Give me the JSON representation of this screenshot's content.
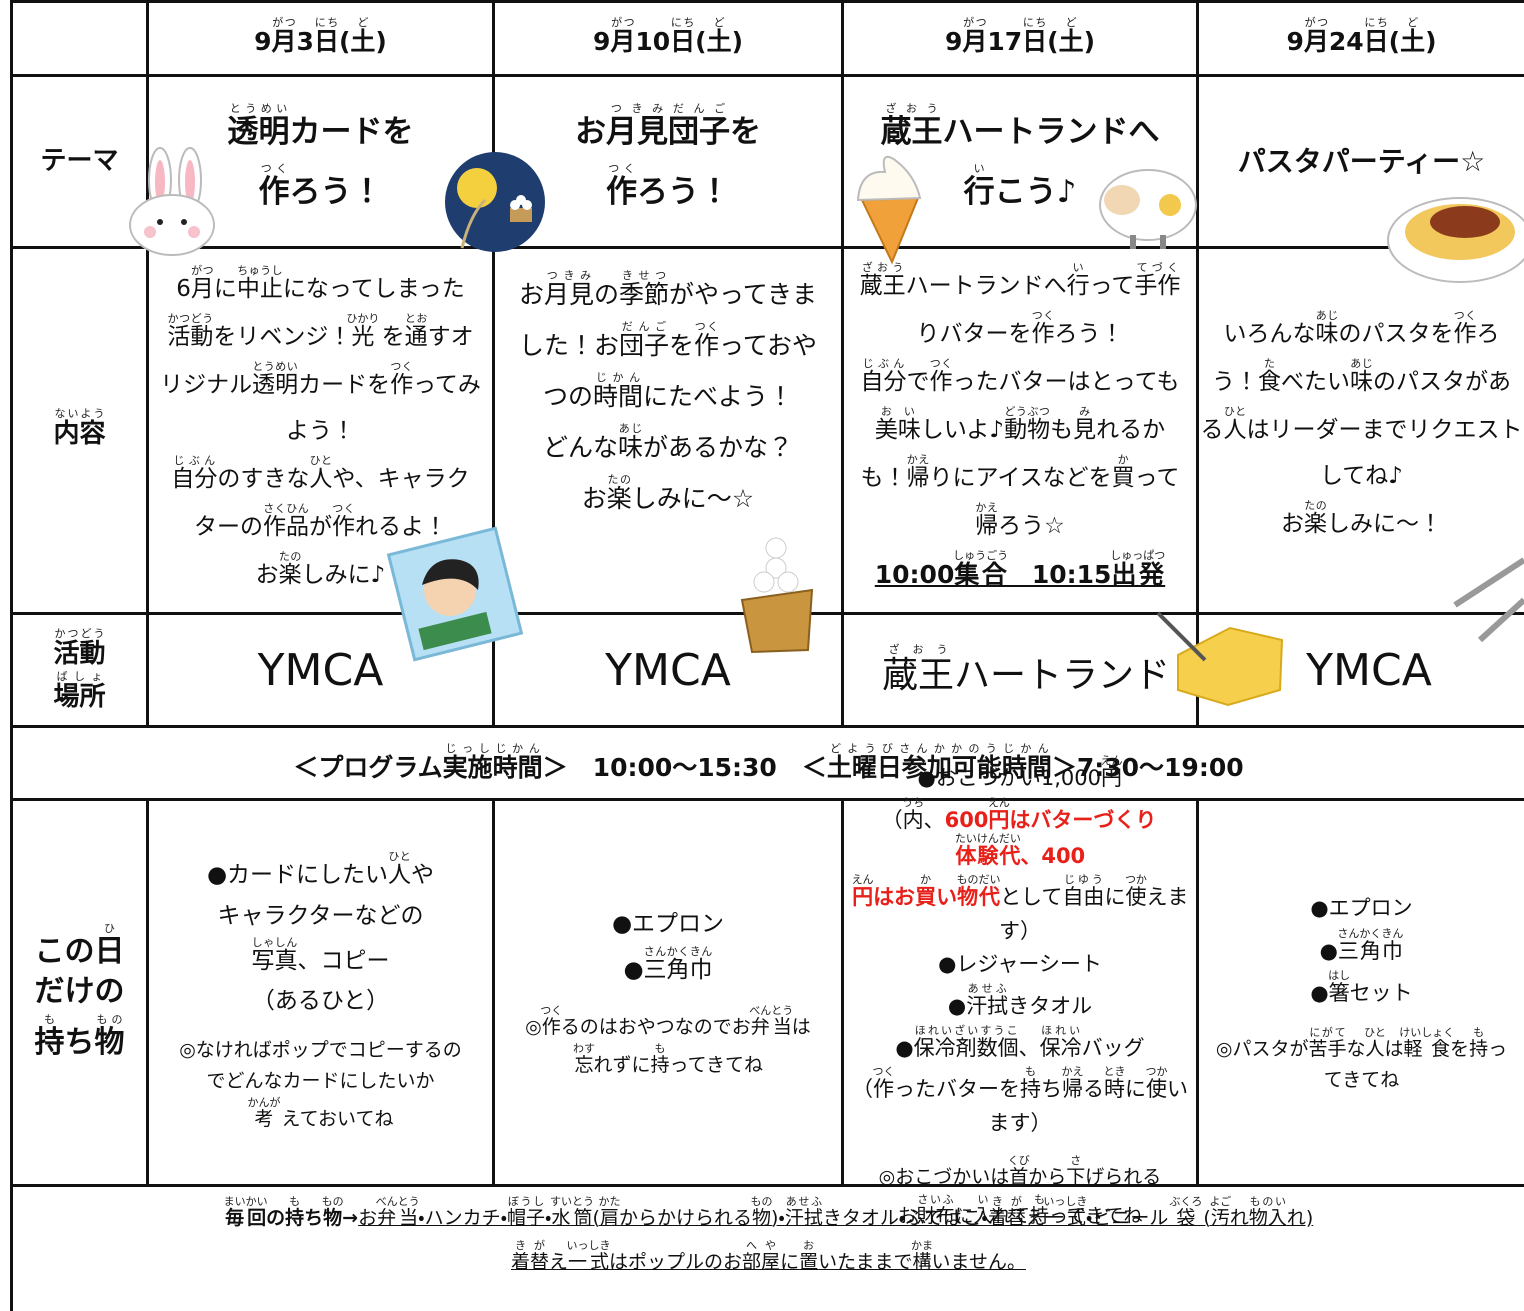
{
  "columns": [
    {
      "date": [
        [
          "9",
          {
            "t": "月",
            "r": "がつ"
          },
          "3",
          {
            "t": "日",
            "r": "にち"
          },
          "(",
          {
            "t": "土",
            "r": "ど"
          },
          ")"
        ]
      ],
      "theme": [
        [
          {
            "t": "透明",
            "r": "とうめい"
          },
          "カードを"
        ],
        [
          {
            "t": "作",
            "r": "つく"
          },
          "ろう！"
        ]
      ],
      "content": [
        [
          "6",
          {
            "t": "月",
            "r": "がつ"
          },
          "に",
          {
            "t": "中止",
            "r": "ちゅうし"
          },
          "になってしまった"
        ],
        [
          {
            "t": "活動",
            "r": "かつどう"
          },
          "をリベンジ！",
          {
            "t": "光",
            "r": "ひかり"
          },
          " を",
          {
            "t": "通",
            "r": "とお"
          },
          "すオ"
        ],
        [
          "リジナル",
          {
            "t": "透明",
            "r": "とうめい"
          },
          "カードを",
          {
            "t": "作",
            "r": "つく"
          },
          "ってみ"
        ],
        [
          "よう！"
        ],
        [
          {
            "t": "自分",
            "r": "じぶん"
          },
          "のすきな",
          {
            "t": "人",
            "r": "ひと"
          },
          "や、キャラク"
        ],
        [
          "ターの",
          {
            "t": "作品",
            "r": "さくひん"
          },
          "が",
          {
            "t": "作",
            "r": "つく"
          },
          "れるよ！"
        ],
        [
          "お",
          {
            "t": "楽",
            "r": "たの"
          },
          "しみに♪"
        ]
      ],
      "place": [
        [
          "YMCA"
        ]
      ],
      "items": [
        [
          "●カードにしたい",
          {
            "t": "人",
            "r": "ひと"
          },
          "や"
        ],
        [
          "キャラクターなどの"
        ],
        [
          {
            "t": "写真",
            "r": "しゃしん"
          },
          "、コピー"
        ],
        [
          "（あるひと）"
        ]
      ],
      "note": [
        [
          "◎なければポップでコピーするの"
        ],
        [
          "でどんなカードにしたいか"
        ],
        [
          {
            "t": "考",
            "r": "かんが"
          },
          " えておいてね"
        ]
      ]
    },
    {
      "date": [
        [
          "9",
          {
            "t": "月",
            "r": "がつ"
          },
          "10",
          {
            "t": "日",
            "r": "にち"
          },
          "(",
          {
            "t": "土",
            "r": "ど"
          },
          ")"
        ]
      ],
      "theme": [
        [
          "お",
          {
            "t": "月見団子",
            "r": "つきみだんご"
          },
          "を"
        ],
        [
          {
            "t": "作",
            "r": "つく"
          },
          "ろう！"
        ]
      ],
      "content": [
        [
          "お",
          {
            "t": "月見",
            "r": "つきみ"
          },
          "の",
          {
            "t": "季節",
            "r": "きせつ"
          },
          "がやってきま"
        ],
        [
          "した！お",
          {
            "t": "団子",
            "r": "だんご"
          },
          "を",
          {
            "t": "作",
            "r": "つく"
          },
          "っておや"
        ],
        [
          "つの",
          {
            "t": "時間",
            "r": "じかん"
          },
          "にたべよう！"
        ],
        [
          "どんな",
          {
            "t": "味",
            "r": "あじ"
          },
          "があるかな？"
        ],
        [
          "お",
          {
            "t": "楽",
            "r": "たの"
          },
          "しみに～☆"
        ]
      ],
      "place": [
        [
          "YMCA"
        ]
      ],
      "items": [
        [
          "●エプロン"
        ],
        [
          "●",
          {
            "t": "三角巾",
            "r": "さんかくきん"
          }
        ]
      ],
      "note": [
        [
          "◎",
          {
            "t": "作",
            "r": "つく"
          },
          "るのはおやつなのでお",
          {
            "t": "弁当",
            "r": "べんとう"
          },
          "は"
        ],
        [
          {
            "t": "忘",
            "r": "わす"
          },
          "れずに",
          {
            "t": "持",
            "r": "も"
          },
          "ってきてね"
        ]
      ]
    },
    {
      "date": [
        [
          "9",
          {
            "t": "月",
            "r": "がつ"
          },
          "17",
          {
            "t": "日",
            "r": "にち"
          },
          "(",
          {
            "t": "土",
            "r": "ど"
          },
          ")"
        ]
      ],
      "theme": [
        [
          {
            "t": "蔵王",
            "r": "ざおう"
          },
          "ハートランドへ"
        ],
        [
          {
            "t": "行",
            "r": "い"
          },
          "こう♪"
        ]
      ],
      "content": [
        [
          {
            "t": "蔵王",
            "r": "ざおう"
          },
          "ハートランドへ",
          {
            "t": "行",
            "r": "い"
          },
          "って",
          {
            "t": "手作",
            "r": "てづく"
          }
        ],
        [
          "りバターを",
          {
            "t": "作",
            "r": "つく"
          },
          "ろう！"
        ],
        [
          {
            "t": "自分",
            "r": "じぶん"
          },
          "で",
          {
            "t": "作",
            "r": "つく"
          },
          "ったバターはとっても"
        ],
        [
          {
            "t": "美味",
            "r": "おい"
          },
          "しいよ♪",
          {
            "t": "動物",
            "r": "どうぶつ"
          },
          "も",
          {
            "t": "見",
            "r": "み"
          },
          "れるか"
        ],
        [
          "も！",
          {
            "t": "帰",
            "r": "かえ"
          },
          "りにアイスなどを",
          {
            "t": "買",
            "r": "か"
          },
          "って"
        ],
        [
          {
            "t": "帰",
            "r": "かえ"
          },
          "ろう☆"
        ]
      ],
      "content_emphasis": [
        [
          "10:00",
          {
            "t": "集合",
            "r": "しゅうごう"
          },
          "　10:15",
          {
            "t": "出発",
            "r": "しゅっぱつ"
          }
        ]
      ],
      "place": [
        [
          {
            "t": "蔵王",
            "r": "ざおう"
          },
          "ハートランド"
        ]
      ],
      "items": [
        [
          "●おこづかい1,000",
          {
            "t": "円",
            "r": "えん"
          }
        ],
        [
          "（",
          {
            "t": "内",
            "r": "うち"
          },
          "、",
          {
            "t": "600",
            "red": true
          },
          {
            "t": "円",
            "r": "えん",
            "red": true
          },
          {
            "t": "はバターづくり",
            "red": true
          },
          {
            "t": "体験代",
            "r": "たいけんだい",
            "red": true
          },
          {
            "t": "、400",
            "red": true
          }
        ],
        [
          {
            "t": "円",
            "r": "えん",
            "red": true
          },
          {
            "t": "はお",
            "red": true
          },
          {
            "t": "買",
            "r": "か",
            "red": true
          },
          {
            "t": "い",
            "red": true
          },
          {
            "t": "物代",
            "r": "ものだい",
            "red": true
          },
          "として",
          {
            "t": "自由",
            "r": "じゆう"
          },
          "に",
          {
            "t": "使",
            "r": "つか"
          },
          "えます）"
        ],
        [
          "●レジャーシート"
        ],
        [
          "●",
          {
            "t": "汗拭",
            "r": "あせふ"
          },
          "きタオル"
        ],
        [
          "●",
          {
            "t": "保冷剤数個",
            "r": "ほれいざいすうこ"
          },
          "、",
          {
            "t": "保冷",
            "r": "ほれい"
          },
          "バッグ"
        ],
        [
          "（",
          {
            "t": "作",
            "r": "つく"
          },
          "ったバターを",
          {
            "t": "持",
            "r": "も"
          },
          "ち",
          {
            "t": "帰",
            "r": "かえ"
          },
          "る",
          {
            "t": "時",
            "r": "とき"
          },
          "に",
          {
            "t": "使",
            "r": "つか"
          },
          "います）"
        ]
      ],
      "note": [
        [
          "◎おこづかいは",
          {
            "t": "首",
            "r": "くび"
          },
          "から",
          {
            "t": "下",
            "r": "さ"
          },
          "げられる"
        ],
        [
          "お",
          {
            "t": "財布",
            "r": "さいふ"
          },
          "に",
          {
            "t": "入",
            "r": "い"
          },
          "れて",
          {
            "t": "持",
            "r": "も"
          },
          "ってきてね"
        ]
      ]
    },
    {
      "date": [
        [
          "9",
          {
            "t": "月",
            "r": "がつ"
          },
          "24",
          {
            "t": "日",
            "r": "にち"
          },
          "(",
          {
            "t": "土",
            "r": "ど"
          },
          ")"
        ]
      ],
      "theme": [
        [
          "パスタパーティー☆"
        ]
      ],
      "content": [
        [
          "いろんな",
          {
            "t": "味",
            "r": "あじ"
          },
          "のパスタを",
          {
            "t": "作",
            "r": "つく"
          },
          "ろ"
        ],
        [
          "う！",
          {
            "t": "食",
            "r": "た"
          },
          "べたい",
          {
            "t": "味",
            "r": "あじ"
          },
          "のパスタがあ"
        ],
        [
          "る",
          {
            "t": "人",
            "r": "ひと"
          },
          "はリーダーまでリクエスト"
        ],
        [
          "してね♪"
        ],
        [
          "お",
          {
            "t": "楽",
            "r": "たの"
          },
          "しみに～！"
        ]
      ],
      "place": [
        [
          "YMCA"
        ]
      ],
      "items": [
        [
          "●エプロン"
        ],
        [
          "●",
          {
            "t": "三角巾",
            "r": "さんかくきん"
          }
        ],
        [
          "●",
          {
            "t": "箸",
            "r": "はし"
          },
          "セット"
        ]
      ],
      "note": [
        [
          "◎パスタが",
          {
            "t": "苦手",
            "r": "にがて"
          },
          "な",
          {
            "t": "人",
            "r": "ひと"
          },
          "は",
          {
            "t": "軽食",
            "r": "けいしょく"
          },
          "を",
          {
            "t": "持",
            "r": "も"
          },
          "っ"
        ],
        [
          "てきてね"
        ]
      ]
    }
  ],
  "row_labels": {
    "theme": [
      [
        "テーマ"
      ]
    ],
    "content": [
      [
        {
          "t": "内容",
          "r": "ないよう"
        }
      ]
    ],
    "place": [
      [
        {
          "t": "活動",
          "r": "かつどう"
        }
      ],
      [
        {
          "t": "場所",
          "r": "ばしょ"
        }
      ]
    ],
    "items": [
      [
        "この",
        {
          "t": "日",
          "r": "ひ"
        }
      ],
      [
        "だけの"
      ],
      [
        {
          "t": "持",
          "r": "も"
        },
        "ち",
        {
          "t": "物",
          "r": "もの"
        }
      ]
    ]
  },
  "program": [
    [
      "＜プログラム",
      {
        "t": "実施時間",
        "r": "じっしじかん"
      },
      "＞　10:00～15:30　＜",
      {
        "t": "土曜日参加可能時間",
        "r": "どようびさんかかのうじかん"
      },
      "＞7:30～19:00"
    ]
  ],
  "footer": {
    "label": [
      {
        "t": "毎回",
        "r": "まいかい"
      },
      "の",
      {
        "t": "持",
        "r": "も"
      },
      "ち",
      {
        "t": "物",
        "r": "もの"
      },
      "→"
    ],
    "list": [
      "お",
      {
        "t": "弁当",
        "r": "べんとう"
      },
      "・ハンカチ・",
      {
        "t": "帽子",
        "r": "ぼうし"
      },
      "・",
      {
        "t": "水筒",
        "r": "すいとう"
      },
      "(",
      {
        "t": "肩",
        "r": "かた"
      },
      "からかけられる",
      {
        "t": "物",
        "r": "もの"
      },
      ")・",
      {
        "t": "汗拭",
        "r": "あせふ"
      },
      "きタオル・ふでばこ・",
      {
        "t": "着替",
        "r": "きが"
      },
      "え",
      {
        "t": "一式",
        "r": "いっしき"
      },
      "・ビニール ",
      {
        "t": "袋",
        "r": "ぶくろ"
      },
      " (",
      {
        "t": "汚",
        "r": "よご"
      },
      "れ",
      {
        "t": "物入",
        "r": "ものい"
      },
      "れ)"
    ],
    "note": [
      {
        "t": "着替",
        "r": "きが"
      },
      "え",
      {
        "t": "一式",
        "r": "いっしき"
      },
      "はポップルのお",
      {
        "t": "部屋",
        "r": "へや"
      },
      "に",
      {
        "t": "置",
        "r": "お"
      },
      "いたままで",
      {
        "t": "構",
        "r": "かま"
      },
      "いません。"
    ]
  }
}
